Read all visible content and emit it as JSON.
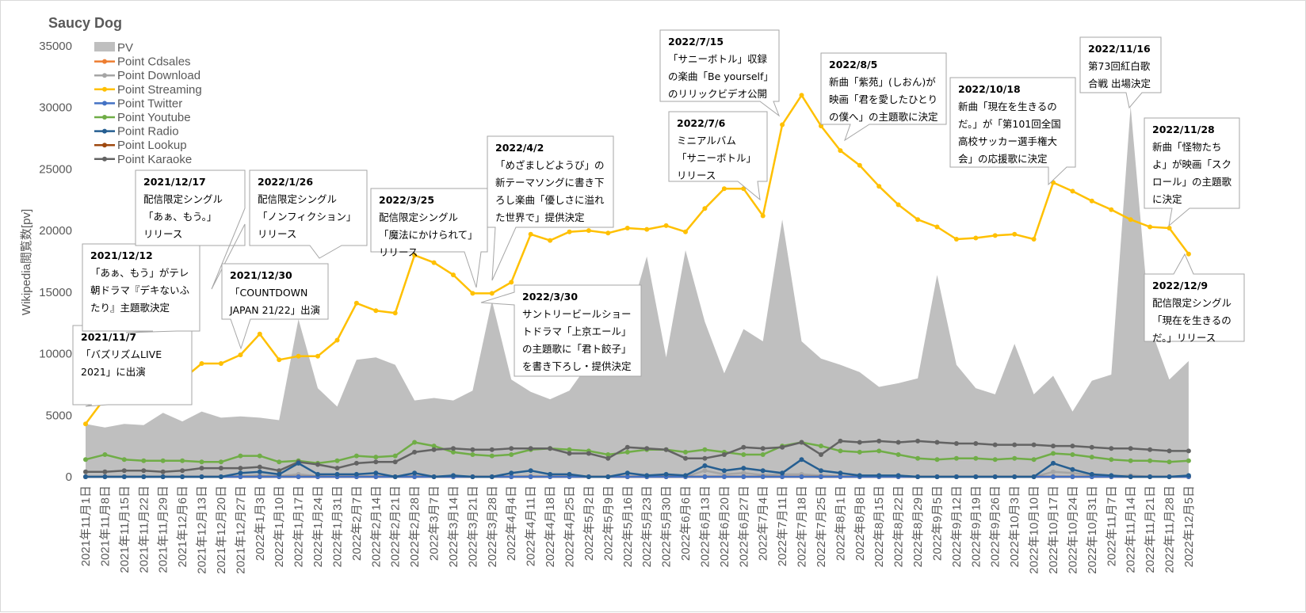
{
  "chart_data": {
    "type": "line",
    "title": "Saucy Dog",
    "ylabel": "Wikipedia閲覧数[pv]",
    "xlabel": "",
    "ylim": [
      0,
      35000
    ],
    "yticks": [
      0,
      5000,
      10000,
      15000,
      20000,
      25000,
      30000,
      35000
    ],
    "grid": false,
    "legend_position": "top-left",
    "categories": [
      "2021年11月1日",
      "2021年11月8日",
      "2021年11月15日",
      "2021年11月22日",
      "2021年11月29日",
      "2021年12月6日",
      "2021年12月13日",
      "2021年12月20日",
      "2021年12月27日",
      "2022年1月3日",
      "2022年1月10日",
      "2022年1月17日",
      "2022年1月24日",
      "2022年1月31日",
      "2022年2月7日",
      "2022年2月14日",
      "2022年2月21日",
      "2022年2月28日",
      "2022年3月7日",
      "2022年3月14日",
      "2022年3月21日",
      "2022年3月28日",
      "2022年4月4日",
      "2022年4月11日",
      "2022年4月18日",
      "2022年4月25日",
      "2022年5月2日",
      "2022年5月9日",
      "2022年5月16日",
      "2022年5月23日",
      "2022年5月30日",
      "2022年6月6日",
      "2022年6月13日",
      "2022年6月20日",
      "2022年6月27日",
      "2022年7月4日",
      "2022年7月11日",
      "2022年7月18日",
      "2022年7月25日",
      "2022年8月1日",
      "2022年8月8日",
      "2022年8月15日",
      "2022年8月22日",
      "2022年8月29日",
      "2022年9月5日",
      "2022年9月12日",
      "2022年9月19日",
      "2022年9月26日",
      "2022年10月3日",
      "2022年10月10日",
      "2022年10月17日",
      "2022年10月24日",
      "2022年10月31日",
      "2022年11月7日",
      "2022年11月14日",
      "2022年11月21日",
      "2022年11月28日",
      "2022年12月5日"
    ],
    "area": {
      "name": "PV",
      "color": "#bfbfbf",
      "values": [
        4300,
        4000,
        4300,
        4200,
        5200,
        4500,
        5300,
        4800,
        4900,
        4800,
        4600,
        12800,
        7200,
        5700,
        9500,
        9700,
        9100,
        6200,
        6400,
        6200,
        7000,
        14300,
        7900,
        6900,
        6300,
        7000,
        9200,
        11000,
        12400,
        17900,
        9700,
        18400,
        12600,
        8400,
        12000,
        11000,
        20900,
        11000,
        9600,
        9100,
        8500,
        7300,
        7600,
        8000,
        16400,
        9100,
        7200,
        6700,
        10800,
        6700,
        8200,
        5300,
        7800,
        8300,
        30100,
        12200,
        7900,
        9400
      ]
    },
    "series": [
      {
        "name": "Point Cdsales",
        "color": "#ed7d31",
        "values": [
          0,
          0,
          0,
          0,
          0,
          0,
          0,
          0,
          0,
          0,
          0,
          0,
          0,
          0,
          0,
          0,
          0,
          0,
          0,
          0,
          0,
          0,
          0,
          0,
          0,
          0,
          0,
          0,
          0,
          0,
          0,
          0,
          0,
          0,
          0,
          0,
          0,
          0,
          0,
          0,
          0,
          0,
          0,
          0,
          0,
          0,
          0,
          0,
          0,
          0,
          0,
          0,
          0,
          0,
          0,
          0,
          0,
          0
        ]
      },
      {
        "name": "Point Download",
        "color": "#a5a5a5",
        "values": [
          0,
          0,
          0,
          0,
          0,
          0,
          0,
          0,
          50,
          100,
          50,
          200,
          50,
          0,
          0,
          50,
          0,
          50,
          0,
          0,
          0,
          0,
          0,
          50,
          0,
          0,
          0,
          0,
          0,
          0,
          0,
          0,
          500,
          200,
          300,
          150,
          200,
          200,
          100,
          50,
          0,
          0,
          0,
          0,
          0,
          0,
          0,
          0,
          0,
          0,
          400,
          300,
          150,
          50,
          100,
          0,
          0,
          0
        ]
      },
      {
        "name": "Point Streaming",
        "color": "#ffc000",
        "values": [
          4300,
          6400,
          6600,
          7000,
          7400,
          7900,
          9200,
          9200,
          9900,
          11600,
          9500,
          9800,
          9800,
          11100,
          14100,
          13500,
          13300,
          18000,
          17400,
          16400,
          14900,
          14900,
          15800,
          19700,
          19200,
          19900,
          20000,
          19800,
          20200,
          20100,
          20400,
          19900,
          21800,
          23400,
          23400,
          21200,
          28600,
          31000,
          28500,
          26500,
          25300,
          23600,
          22100,
          20900,
          20300,
          19300,
          19400,
          19600,
          19700,
          19300,
          23900,
          23200,
          22400,
          21700,
          20900,
          20300,
          20200,
          18100
        ]
      },
      {
        "name": "Point Twitter",
        "color": "#4472c4",
        "values": [
          0,
          0,
          0,
          0,
          0,
          0,
          0,
          0,
          0,
          0,
          0,
          0,
          0,
          0,
          0,
          0,
          0,
          0,
          0,
          0,
          0,
          0,
          0,
          0,
          0,
          0,
          0,
          0,
          0,
          0,
          0,
          0,
          0,
          0,
          0,
          0,
          0,
          0,
          0,
          0,
          0,
          0,
          0,
          0,
          0,
          0,
          0,
          0,
          0,
          0,
          0,
          0,
          0,
          0,
          0,
          0,
          0,
          0
        ]
      },
      {
        "name": "Point Youtube",
        "color": "#70ad47",
        "values": [
          1400,
          1800,
          1400,
          1300,
          1300,
          1300,
          1200,
          1200,
          1700,
          1700,
          1200,
          1300,
          1100,
          1300,
          1700,
          1600,
          1700,
          2800,
          2500,
          2000,
          1800,
          1700,
          1800,
          2200,
          2300,
          2200,
          2100,
          1800,
          2000,
          2200,
          2200,
          2000,
          2200,
          2000,
          1800,
          1800,
          2500,
          2800,
          2500,
          2100,
          2000,
          2100,
          1800,
          1500,
          1400,
          1500,
          1500,
          1400,
          1500,
          1400,
          1900,
          1800,
          1600,
          1400,
          1300,
          1300,
          1200,
          1300
        ]
      },
      {
        "name": "Point Radio",
        "color": "#255e91",
        "values": [
          0,
          0,
          0,
          0,
          0,
          0,
          0,
          0,
          300,
          400,
          200,
          1100,
          200,
          200,
          200,
          300,
          0,
          300,
          0,
          100,
          0,
          0,
          300,
          500,
          200,
          200,
          0,
          0,
          300,
          100,
          200,
          100,
          900,
          500,
          700,
          500,
          300,
          1400,
          500,
          300,
          100,
          100,
          100,
          0,
          0,
          0,
          0,
          0,
          0,
          0,
          1100,
          600,
          200,
          100,
          0,
          0,
          0,
          100
        ]
      },
      {
        "name": "Point Lookup",
        "color": "#9e480e",
        "values": [
          0,
          0,
          0,
          0,
          0,
          0,
          0,
          0,
          0,
          0,
          0,
          0,
          0,
          0,
          0,
          0,
          0,
          0,
          0,
          0,
          0,
          0,
          0,
          0,
          0,
          0,
          0,
          0,
          0,
          0,
          0,
          0,
          0,
          0,
          0,
          0,
          0,
          0,
          0,
          0,
          0,
          0,
          0,
          0,
          0,
          0,
          0,
          0,
          0,
          0,
          0,
          0,
          0,
          0,
          0,
          0,
          0,
          0
        ]
      },
      {
        "name": "Point Karaoke",
        "color": "#636363",
        "values": [
          400,
          400,
          500,
          500,
          400,
          500,
          700,
          700,
          700,
          800,
          500,
          1200,
          1000,
          700,
          1100,
          1200,
          1200,
          2000,
          2200,
          2300,
          2200,
          2200,
          2300,
          2300,
          2300,
          1900,
          1900,
          1500,
          2400,
          2300,
          2200,
          1500,
          1500,
          1800,
          2400,
          2300,
          2400,
          2800,
          1800,
          2900,
          2800,
          2900,
          2800,
          2900,
          2800,
          2700,
          2700,
          2600,
          2600,
          2600,
          2500,
          2500,
          2400,
          2300,
          2300,
          2200,
          2100,
          2100
        ]
      }
    ]
  },
  "annotations": [
    {
      "lines": [
        "2021/11/7",
        "「バズリズムLIVE",
        "2021」に出演"
      ]
    },
    {
      "lines": [
        "2021/12/12",
        "「あぁ、もう」がテレ",
        "朝ドラマ『デキないふ",
        "たり』主題歌決定"
      ]
    },
    {
      "lines": [
        "2021/12/17",
        "配信限定シングル",
        "「あぁ、もう。」",
        "リリース"
      ]
    },
    {
      "lines": [
        "2021/12/30",
        "「COUNTDOWN",
        "JAPAN 21/22」出演"
      ]
    },
    {
      "lines": [
        "2022/1/26",
        "配信限定シングル",
        "「ノンフィクション」",
        "リリース"
      ]
    },
    {
      "lines": [
        "2022/3/25",
        "配信限定シングル",
        "「魔法にかけられて」",
        "リリース"
      ]
    },
    {
      "lines": [
        "2022/4/2",
        "「めざましどようび」の",
        "新テーマソングに書き下",
        "ろし楽曲「優しさに溢れ",
        "た世界で」提供決定"
      ]
    },
    {
      "lines": [
        "2022/3/30",
        "サントリービールショー",
        "トドラマ「上京エール」",
        "の主題歌に「君ト餃子」",
        "を書き下ろし・提供決定"
      ]
    },
    {
      "lines": [
        "2022/7/15",
        "「サニーボトル」収録",
        "の楽曲「Be yourself」",
        "のリリックビデオ公開"
      ]
    },
    {
      "lines": [
        "2022/7/6",
        "ミニアルバム",
        "「サニーボトル」",
        "リリース"
      ]
    },
    {
      "lines": [
        "2022/8/5",
        "新曲「紫苑」(しおん)が",
        "映画「君を愛したひとり",
        "の僕へ」の主題歌に決定"
      ]
    },
    {
      "lines": [
        "2022/10/18",
        "新曲「現在を生きるの",
        "だ。」が「第101回全国",
        "高校サッカー選手権大",
        "会」の応援歌に決定"
      ]
    },
    {
      "lines": [
        "2022/11/16",
        "第73回紅白歌",
        "合戦 出場決定"
      ]
    },
    {
      "lines": [
        "2022/11/28",
        "新曲「怪物たち",
        "よ」が映画「スク",
        "ロール」の主題歌",
        "に決定"
      ]
    },
    {
      "lines": [
        "2022/12/9",
        "配信限定シングル",
        "「現在を生きるの",
        "だ。」リリース"
      ]
    }
  ]
}
